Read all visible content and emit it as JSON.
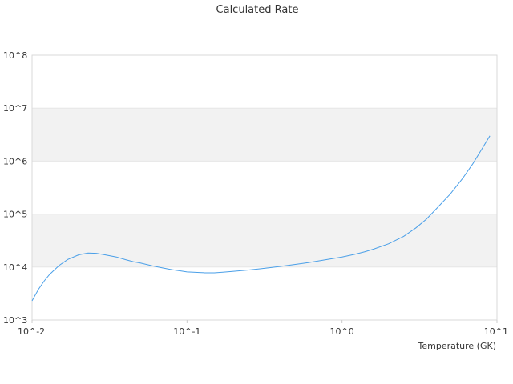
{
  "chart_data": {
    "type": "line",
    "title": "Calculated Rate",
    "xlabel": "Temperature (GK)",
    "ylabel": "",
    "x_scale": "log",
    "y_scale": "log",
    "xlim": [
      0.01,
      10
    ],
    "ylim": [
      1000,
      100000000
    ],
    "x_ticks": [
      "10^-2",
      "10^-1",
      "10^0",
      "10^1"
    ],
    "y_ticks": [
      "10^3",
      "10^4",
      "10^5",
      "10^6",
      "10^7",
      "10^8"
    ],
    "y_bands": "alternating shaded bands between decades 10^4-10^5 and 10^6-10^7",
    "series": [
      {
        "name": "",
        "color": "#4a9fe8",
        "x": [
          0.01,
          0.011,
          0.012,
          0.013,
          0.015,
          0.017,
          0.02,
          0.023,
          0.026,
          0.03,
          0.035,
          0.04,
          0.045,
          0.05,
          0.06,
          0.07,
          0.08,
          0.09,
          0.1,
          0.11,
          0.12,
          0.13,
          0.15,
          0.17,
          0.2,
          0.25,
          0.3,
          0.35,
          0.4,
          0.5,
          0.6,
          0.7,
          0.8,
          1.0,
          1.2,
          1.4,
          1.6,
          2.0,
          2.5,
          3.0,
          3.5,
          4.0,
          5.0,
          6.0,
          7.0,
          8.0,
          9.0
        ],
        "y": [
          2300,
          3800,
          5500,
          7300,
          10800,
          13900,
          17000,
          18400,
          18200,
          16900,
          15500,
          13800,
          12600,
          11900,
          10500,
          9600,
          8900,
          8500,
          8100,
          8000,
          7900,
          7800,
          7800,
          8000,
          8300,
          8800,
          9300,
          9800,
          10300,
          11200,
          12100,
          13000,
          13900,
          15500,
          17300,
          19400,
          21800,
          27500,
          38000,
          55000,
          80000,
          120000,
          240000,
          470000,
          900000,
          1700000,
          3000000
        ]
      }
    ],
    "grid": false,
    "legend": "none"
  }
}
